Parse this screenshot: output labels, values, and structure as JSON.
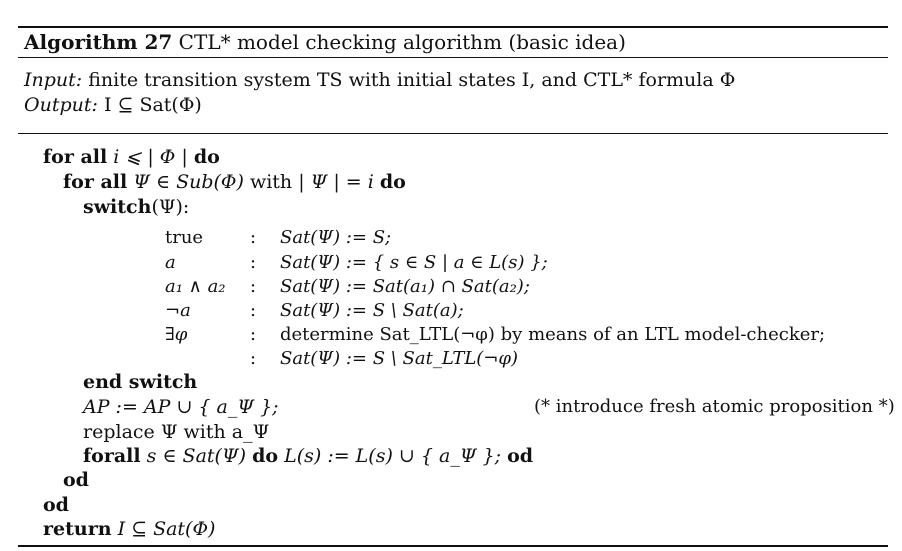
{
  "algorithm": {
    "name": "Algorithm 27",
    "title": "CTL* model checking algorithm (basic idea)"
  },
  "io": {
    "input_label": "Input:",
    "input_text": "finite transition system TS with initial states I, and CTL* formula Φ",
    "output_label": "Output:",
    "output_text": "I ⊆ Sat(Φ)"
  },
  "code": {
    "loop1_kw": "for all",
    "loop1_cond": "i ⩽ | Φ |",
    "loop1_do": "do",
    "loop2_kw": "for all",
    "loop2_cond": "Ψ ∈ Sub(Φ)",
    "loop2_with": "with",
    "loop2_size": "| Ψ | = i",
    "loop2_do": "do",
    "switch_kw": "switch",
    "switch_arg": "(Ψ):",
    "end_switch": "end switch",
    "ap_update": "AP := AP ∪ { a_Ψ };",
    "comment": "(* introduce fresh atomic proposition *)",
    "replace_text": "replace Ψ with a_Ψ",
    "forall_kw": "forall",
    "forall_cond": "s ∈ Sat(Ψ)",
    "forall_do": "do",
    "forall_body": "L(s) := L(s) ∪ { a_Ψ };",
    "forall_od": "od",
    "od_inner": "od",
    "od_outer": "od",
    "return_kw": "return",
    "return_expr": "I ⊆ Sat(Φ)"
  },
  "cases": [
    {
      "label": "true",
      "action": "Sat(Ψ) := S;"
    },
    {
      "label": "a",
      "action": "Sat(Ψ) := { s ∈ S | a ∈ L(s) };"
    },
    {
      "label": "a₁ ∧ a₂",
      "action": "Sat(Ψ) := Sat(a₁) ∩ Sat(a₂);"
    },
    {
      "label": "¬a",
      "action": "Sat(Ψ) := S \\ Sat(a);"
    },
    {
      "label": "∃φ",
      "action": "determine Sat_LTL(¬φ) by means of an LTL model-checker;"
    },
    {
      "label": "",
      "action": "Sat(Ψ) := S \\ Sat_LTL(¬φ)"
    }
  ],
  "case_separator": ":"
}
